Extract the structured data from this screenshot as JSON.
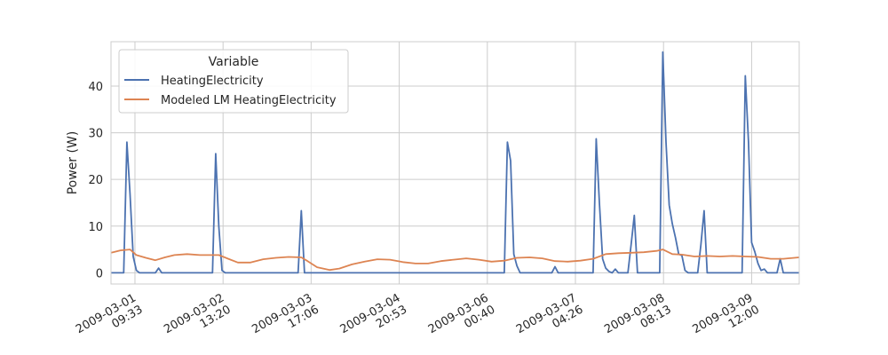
{
  "chart_data": {
    "type": "line",
    "title": "",
    "xlabel": "",
    "ylabel": "Power (W)",
    "xlim": [
      "2009-03-01 02:00",
      "2009-03-10 03:00"
    ],
    "ylim": [
      -2.4,
      49.5
    ],
    "y_ticks": [
      0,
      10,
      20,
      30,
      40
    ],
    "x_ticks": [
      {
        "value": "2009-03-01 09:33",
        "label_date": "2009-03-01",
        "label_time": "09:33"
      },
      {
        "value": "2009-03-02 13:20",
        "label_date": "2009-03-02",
        "label_time": "13:20"
      },
      {
        "value": "2009-03-03 17:06",
        "label_date": "2009-03-03",
        "label_time": "17:06"
      },
      {
        "value": "2009-03-04 20:53",
        "label_date": "2009-03-04",
        "label_time": "20:53"
      },
      {
        "value": "2009-03-06 00:40",
        "label_date": "2009-03-06",
        "label_time": "00:40"
      },
      {
        "value": "2009-03-07 04:26",
        "label_date": "2009-03-07",
        "label_time": "04:26"
      },
      {
        "value": "2009-03-08 08:13",
        "label_date": "2009-03-08",
        "label_time": "08:13"
      },
      {
        "value": "2009-03-09 12:00",
        "label_date": "2009-03-09",
        "label_time": "12:00"
      }
    ],
    "grid": true,
    "legend": {
      "title": "Variable",
      "position": "top-left"
    },
    "series": [
      {
        "name": "HeatingElectricity",
        "color": "#4c72b0",
        "points": [
          [
            "2009-03-01 02:00",
            0
          ],
          [
            "2009-03-01 06:00",
            0
          ],
          [
            "2009-03-01 07:00",
            28
          ],
          [
            "2009-03-01 08:00",
            17
          ],
          [
            "2009-03-01 09:00",
            3.5
          ],
          [
            "2009-03-01 10:00",
            0.5
          ],
          [
            "2009-03-01 11:00",
            0
          ],
          [
            "2009-03-01 16:00",
            0
          ],
          [
            "2009-03-01 17:00",
            1
          ],
          [
            "2009-03-01 18:00",
            0
          ],
          [
            "2009-03-02 10:00",
            0
          ],
          [
            "2009-03-02 11:00",
            25.5
          ],
          [
            "2009-03-02 12:00",
            10
          ],
          [
            "2009-03-02 13:00",
            0.5
          ],
          [
            "2009-03-02 14:00",
            0
          ],
          [
            "2009-03-03 13:00",
            0
          ],
          [
            "2009-03-03 14:00",
            13.3
          ],
          [
            "2009-03-03 15:00",
            0
          ],
          [
            "2009-03-06 06:00",
            0
          ],
          [
            "2009-03-06 07:00",
            28
          ],
          [
            "2009-03-06 08:00",
            24
          ],
          [
            "2009-03-06 09:00",
            4
          ],
          [
            "2009-03-06 10:00",
            1.5
          ],
          [
            "2009-03-06 11:00",
            0
          ],
          [
            "2009-03-06 21:00",
            0
          ],
          [
            "2009-03-06 22:00",
            1.3
          ],
          [
            "2009-03-06 23:00",
            0
          ],
          [
            "2009-03-07 10:00",
            0
          ],
          [
            "2009-03-07 11:00",
            28.7
          ],
          [
            "2009-03-07 12:00",
            15
          ],
          [
            "2009-03-07 13:00",
            3
          ],
          [
            "2009-03-07 14:00",
            1
          ],
          [
            "2009-03-07 15:00",
            0.3
          ],
          [
            "2009-03-07 16:00",
            0
          ],
          [
            "2009-03-07 17:00",
            0.8
          ],
          [
            "2009-03-07 18:00",
            0
          ],
          [
            "2009-03-07 21:00",
            0
          ],
          [
            "2009-03-07 22:00",
            6
          ],
          [
            "2009-03-07 23:00",
            12.3
          ],
          [
            "2009-03-08 00:00",
            0
          ],
          [
            "2009-03-08 07:00",
            0
          ],
          [
            "2009-03-08 08:00",
            47.3
          ],
          [
            "2009-03-08 09:00",
            28
          ],
          [
            "2009-03-08 10:00",
            14.5
          ],
          [
            "2009-03-08 11:00",
            10.5
          ],
          [
            "2009-03-08 12:00",
            7.5
          ],
          [
            "2009-03-08 13:00",
            4
          ],
          [
            "2009-03-08 14:00",
            3.7
          ],
          [
            "2009-03-08 15:00",
            0.5
          ],
          [
            "2009-03-08 16:00",
            0
          ],
          [
            "2009-03-08 19:00",
            0
          ],
          [
            "2009-03-08 20:00",
            6
          ],
          [
            "2009-03-08 21:00",
            13.3
          ],
          [
            "2009-03-08 22:00",
            0
          ],
          [
            "2009-03-09 09:00",
            0
          ],
          [
            "2009-03-09 10:00",
            42.2
          ],
          [
            "2009-03-09 11:00",
            28
          ],
          [
            "2009-03-09 12:00",
            6.5
          ],
          [
            "2009-03-09 13:00",
            4.5
          ],
          [
            "2009-03-09 14:00",
            2
          ],
          [
            "2009-03-09 15:00",
            0.5
          ],
          [
            "2009-03-09 16:00",
            0.8
          ],
          [
            "2009-03-09 17:00",
            0
          ],
          [
            "2009-03-09 20:00",
            0
          ],
          [
            "2009-03-09 21:00",
            3
          ],
          [
            "2009-03-09 22:00",
            0
          ],
          [
            "2009-03-10 03:00",
            0
          ]
        ]
      },
      {
        "name": "Modeled LM HeatingElectricity",
        "color": "#dd8452",
        "points": [
          [
            "2009-03-01 02:00",
            4.3
          ],
          [
            "2009-03-01 05:00",
            4.8
          ],
          [
            "2009-03-01 08:00",
            5
          ],
          [
            "2009-03-01 10:00",
            3.8
          ],
          [
            "2009-03-01 13:00",
            3.2
          ],
          [
            "2009-03-01 16:00",
            2.7
          ],
          [
            "2009-03-01 19:00",
            3.3
          ],
          [
            "2009-03-01 22:00",
            3.8
          ],
          [
            "2009-03-02 02:00",
            4
          ],
          [
            "2009-03-02 06:00",
            3.8
          ],
          [
            "2009-03-02 10:00",
            3.8
          ],
          [
            "2009-03-02 12:00",
            3.8
          ],
          [
            "2009-03-02 15:00",
            3
          ],
          [
            "2009-03-02 18:00",
            2.2
          ],
          [
            "2009-03-02 22:00",
            2.2
          ],
          [
            "2009-03-03 02:00",
            2.9
          ],
          [
            "2009-03-03 06:00",
            3.2
          ],
          [
            "2009-03-03 10:00",
            3.4
          ],
          [
            "2009-03-03 14:00",
            3.3
          ],
          [
            "2009-03-03 16:00",
            2.5
          ],
          [
            "2009-03-03 19:00",
            1.2
          ],
          [
            "2009-03-03 23:00",
            0.6
          ],
          [
            "2009-03-04 02:00",
            0.9
          ],
          [
            "2009-03-04 06:00",
            1.8
          ],
          [
            "2009-03-04 10:00",
            2.4
          ],
          [
            "2009-03-04 14:00",
            2.9
          ],
          [
            "2009-03-04 18:00",
            2.8
          ],
          [
            "2009-03-04 22:00",
            2.3
          ],
          [
            "2009-03-05 02:00",
            2
          ],
          [
            "2009-03-05 06:00",
            2
          ],
          [
            "2009-03-05 10:00",
            2.5
          ],
          [
            "2009-03-05 14:00",
            2.8
          ],
          [
            "2009-03-05 18:00",
            3.1
          ],
          [
            "2009-03-05 22:00",
            2.8
          ],
          [
            "2009-03-06 02:00",
            2.4
          ],
          [
            "2009-03-06 06:00",
            2.6
          ],
          [
            "2009-03-06 10:00",
            3.2
          ],
          [
            "2009-03-06 14:00",
            3.3
          ],
          [
            "2009-03-06 18:00",
            3.1
          ],
          [
            "2009-03-06 22:00",
            2.5
          ],
          [
            "2009-03-07 02:00",
            2.4
          ],
          [
            "2009-03-07 06:00",
            2.6
          ],
          [
            "2009-03-07 10:00",
            3
          ],
          [
            "2009-03-07 14:00",
            4
          ],
          [
            "2009-03-07 18:00",
            4.2
          ],
          [
            "2009-03-07 22:00",
            4.3
          ],
          [
            "2009-03-08 02:00",
            4.4
          ],
          [
            "2009-03-08 06:00",
            4.7
          ],
          [
            "2009-03-08 08:00",
            5
          ],
          [
            "2009-03-08 11:00",
            4
          ],
          [
            "2009-03-08 14:00",
            3.9
          ],
          [
            "2009-03-08 18:00",
            3.5
          ],
          [
            "2009-03-08 22:00",
            3.6
          ],
          [
            "2009-03-09 02:00",
            3.5
          ],
          [
            "2009-03-09 06:00",
            3.6
          ],
          [
            "2009-03-09 10:00",
            3.5
          ],
          [
            "2009-03-09 14:00",
            3.4
          ],
          [
            "2009-03-09 18:00",
            3
          ],
          [
            "2009-03-09 22:00",
            3
          ],
          [
            "2009-03-10 03:00",
            3.3
          ]
        ]
      }
    ]
  }
}
